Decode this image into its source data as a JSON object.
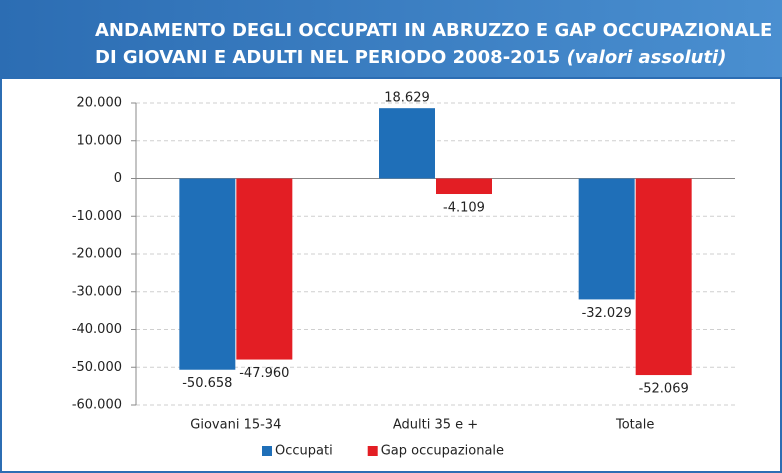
{
  "chart_data": {
    "type": "bar",
    "title_lines": [
      "ANDAMENTO DEGLI OCCUPATI  IN ABRUZZO E GAP OCCUPAZIONALE",
      "DI GIOVANI E ADULTI NEL PERIODO 2008-2015"
    ],
    "subtitle": "(valori assoluti)",
    "categories": [
      "Giovani 15-34",
      "Adulti 35 e +",
      "Totale"
    ],
    "series": [
      {
        "name": "Occupati",
        "color": "#1f6fb8",
        "values": [
          -50658,
          18629,
          -32029
        ],
        "value_labels": [
          "-50.658",
          "18.629",
          "-32.029"
        ]
      },
      {
        "name": "Gap occupazionale",
        "color": "#e31e24",
        "values": [
          -47960,
          -4109,
          -52069
        ],
        "value_labels": [
          "-47.960",
          "-4.109",
          "-52.069"
        ]
      }
    ],
    "ylim": [
      -60000,
      20000
    ],
    "yticks": [
      {
        "value": -60000,
        "label": "-60.000"
      },
      {
        "value": -50000,
        "label": "-50.000"
      },
      {
        "value": -40000,
        "label": "-40.000"
      },
      {
        "value": -30000,
        "label": "-30.000"
      },
      {
        "value": -20000,
        "label": "-20.000"
      },
      {
        "value": -10000,
        "label": "-10.000"
      },
      0,
      {
        "value": 10000,
        "label": "10.000"
      },
      {
        "value": 20000,
        "label": "20.000"
      }
    ],
    "grid": true,
    "legend": "bottom"
  }
}
